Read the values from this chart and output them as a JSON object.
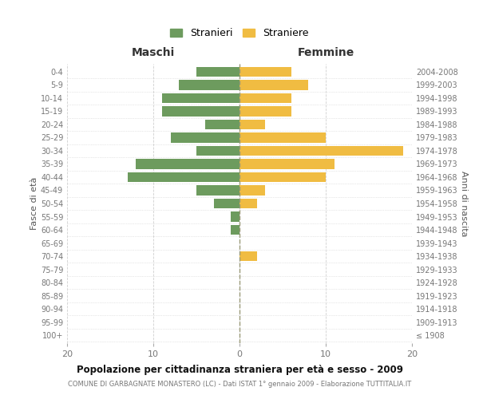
{
  "age_groups": [
    "100+",
    "95-99",
    "90-94",
    "85-89",
    "80-84",
    "75-79",
    "70-74",
    "65-69",
    "60-64",
    "55-59",
    "50-54",
    "45-49",
    "40-44",
    "35-39",
    "30-34",
    "25-29",
    "20-24",
    "15-19",
    "10-14",
    "5-9",
    "0-4"
  ],
  "birth_years": [
    "≤ 1908",
    "1909-1913",
    "1914-1918",
    "1919-1923",
    "1924-1928",
    "1929-1933",
    "1934-1938",
    "1939-1943",
    "1944-1948",
    "1949-1953",
    "1954-1958",
    "1959-1963",
    "1964-1968",
    "1969-1973",
    "1974-1978",
    "1979-1983",
    "1984-1988",
    "1989-1993",
    "1994-1998",
    "1999-2003",
    "2004-2008"
  ],
  "males": [
    0,
    0,
    0,
    0,
    0,
    0,
    0,
    0,
    1,
    1,
    3,
    5,
    13,
    12,
    5,
    8,
    4,
    9,
    9,
    7,
    5
  ],
  "females": [
    0,
    0,
    0,
    0,
    0,
    0,
    2,
    0,
    0,
    0,
    2,
    3,
    10,
    11,
    19,
    10,
    3,
    6,
    6,
    8,
    6
  ],
  "male_color": "#6d9b5e",
  "female_color": "#f0bc42",
  "title": "Popolazione per cittadinanza straniera per età e sesso - 2009",
  "subtitle": "COMUNE DI GARBAGNATE MONASTERO (LC) - Dati ISTAT 1° gennaio 2009 - Elaborazione TUTTITALIA.IT",
  "xlabel_left": "Maschi",
  "xlabel_right": "Femmine",
  "ylabel_left": "Fasce di età",
  "ylabel_right": "Anni di nascita",
  "legend_male": "Stranieri",
  "legend_female": "Straniere",
  "xlim": 20,
  "background_color": "#ffffff",
  "grid_color": "#d0d0d0",
  "bar_height": 0.75
}
